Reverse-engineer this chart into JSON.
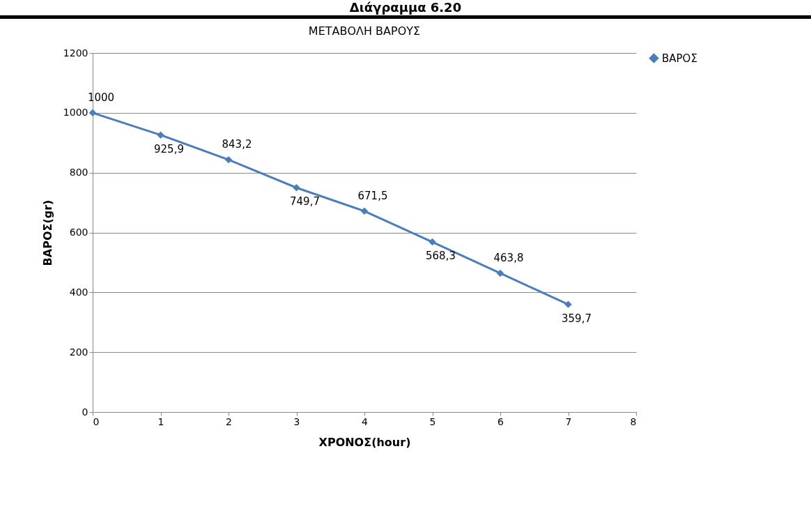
{
  "chart_data": {
    "type": "line",
    "title": "ΜΕΤΑΒΟΛΗ ΒΑΡΟΥΣ",
    "annotations": [
      "Διάγραμμα 6.20"
    ],
    "xlabel": "ΧΡΟΝΟΣ(hour)",
    "ylabel": "ΒΑΡΟΣ(gr)",
    "x": [
      0,
      1,
      2,
      3,
      4,
      5,
      6,
      7
    ],
    "series": [
      {
        "name": "ΒΑΡΟΣ",
        "color": "#4a7ebb",
        "values": [
          1000,
          925.9,
          843.2,
          749.7,
          671.5,
          568.3,
          463.8,
          359.7
        ],
        "value_labels": [
          "1000",
          "925,9",
          "843,2",
          "749,7",
          "671,5",
          "568,3",
          "463,8",
          "359,7"
        ]
      }
    ],
    "xlim": [
      0,
      8
    ],
    "xticks": [
      0,
      1,
      2,
      3,
      4,
      5,
      6,
      7,
      8
    ],
    "ylim": [
      0,
      1200
    ],
    "yticks": [
      0,
      200,
      400,
      600,
      800,
      1000,
      1200
    ],
    "grid": "y",
    "legend": "right",
    "marker": "diamond",
    "line_style": "solid"
  }
}
